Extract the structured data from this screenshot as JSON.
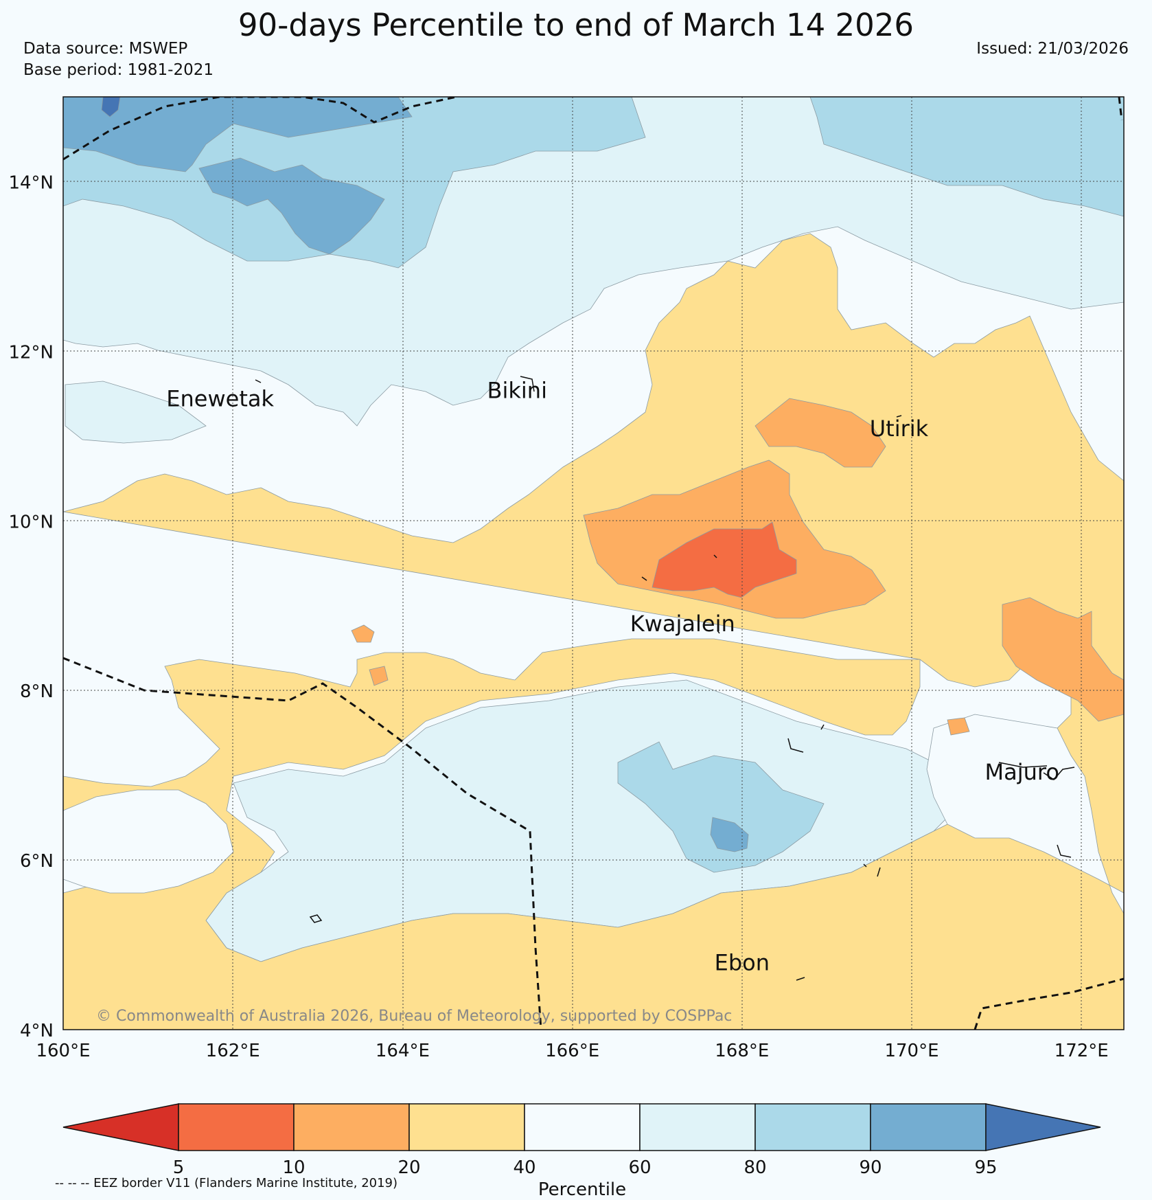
{
  "header": {
    "title": "90-days Percentile to end of March 14 2026",
    "data_source": "Data source: MSWEP",
    "base_period": "Base period: 1981-2021",
    "issued": "Issued: 21/03/2026"
  },
  "map": {
    "lon_range": [
      160,
      172.5
    ],
    "lat_range": [
      4,
      15
    ],
    "lon_ticks": [
      "160°E",
      "162°E",
      "164°E",
      "166°E",
      "168°E",
      "170°E",
      "172°E"
    ],
    "lat_ticks": [
      "4°N",
      "6°N",
      "8°N",
      "10°N",
      "12°N",
      "14°N"
    ],
    "places": [
      {
        "name": "Enewetak",
        "lon": 161.85,
        "lat": 11.35
      },
      {
        "name": "Bikini",
        "lon": 165.35,
        "lat": 11.45
      },
      {
        "name": "Utirik",
        "lon": 169.85,
        "lat": 11.0
      },
      {
        "name": "Kwajalein",
        "lon": 167.3,
        "lat": 8.7
      },
      {
        "name": "Majuro",
        "lon": 171.3,
        "lat": 6.95
      },
      {
        "name": "Ebon",
        "lon": 168.0,
        "lat": 4.7
      }
    ],
    "attribution": "© Commonwealth of Australia 2026, Bureau of Meteorology, supported by COSPPac"
  },
  "legend": {
    "label": "Percentile",
    "ticks": [
      "5",
      "10",
      "20",
      "40",
      "60",
      "80",
      "90",
      "95"
    ],
    "classes": [
      {
        "range": "<5",
        "color": "#d73027"
      },
      {
        "range": "5-10",
        "color": "#f46d43"
      },
      {
        "range": "10-20",
        "color": "#fdae61"
      },
      {
        "range": "20-40",
        "color": "#fee090"
      },
      {
        "range": "40-60",
        "color": "#f5fbfe"
      },
      {
        "range": "60-80",
        "color": "#e0f3f8"
      },
      {
        "range": "80-90",
        "color": "#abd9e9"
      },
      {
        "range": "90-95",
        "color": "#74add1"
      },
      {
        "range": ">95",
        "color": "#4575b4"
      }
    ]
  },
  "footnote": "-- -- -- EEZ border V11 (Flanders Marine Institute, 2019)"
}
